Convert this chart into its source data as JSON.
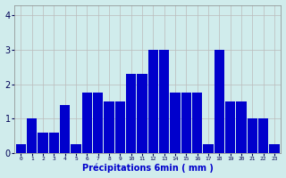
{
  "bar_values": [
    0.25,
    1.0,
    0.6,
    0.6,
    1.4,
    0.25,
    1.75,
    1.75,
    1.5,
    1.5,
    2.3,
    2.3,
    3.0,
    3.0,
    1.75,
    1.75,
    1.75,
    0.25,
    3.0,
    1.5,
    1.5,
    1.0,
    1.0,
    0.25
  ],
  "bar_color": "#0000cc",
  "bg_color": "#d0ecec",
  "grid_color": "#bbbbbb",
  "xlabel": "Précipitations 6min ( mm )",
  "xlabel_color": "#0000cc",
  "ylim": [
    0,
    4.3
  ],
  "yticks": [
    0,
    1,
    2,
    3,
    4
  ],
  "tick_color": "#000055",
  "spine_color": "#888888"
}
